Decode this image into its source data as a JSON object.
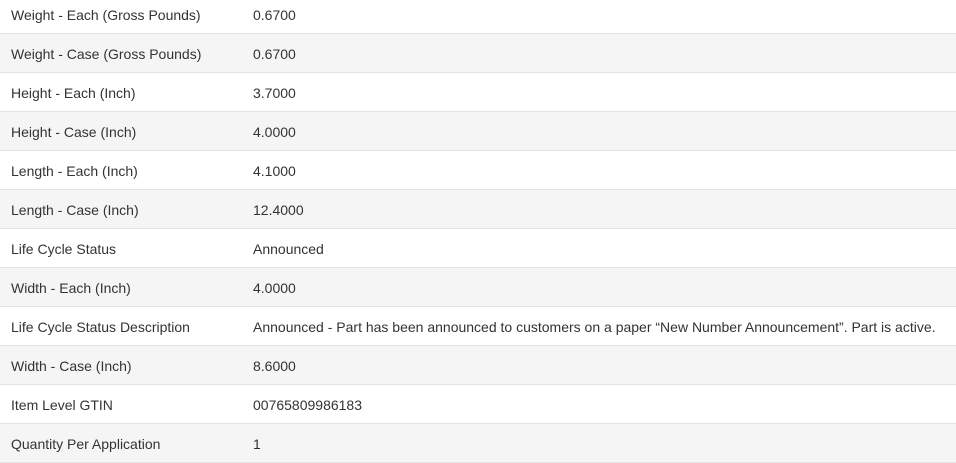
{
  "specs": [
    {
      "label": "Weight - Each (Gross Pounds)",
      "value": "0.6700"
    },
    {
      "label": "Weight - Case (Gross Pounds)",
      "value": "0.6700"
    },
    {
      "label": "Height - Each (Inch)",
      "value": "3.7000"
    },
    {
      "label": "Height - Case (Inch)",
      "value": "4.0000"
    },
    {
      "label": "Length - Each (Inch)",
      "value": "4.1000"
    },
    {
      "label": "Length - Case (Inch)",
      "value": "12.4000"
    },
    {
      "label": "Life Cycle Status",
      "value": "Announced"
    },
    {
      "label": "Width - Each (Inch)",
      "value": "4.0000"
    },
    {
      "label": "Life Cycle Status Description",
      "value": "Announced - Part has been announced to customers on a paper “New Number Announcement”. Part is active."
    },
    {
      "label": "Width - Case (Inch)",
      "value": "8.6000"
    },
    {
      "label": "Item Level GTIN",
      "value": "00765809986183"
    },
    {
      "label": "Quantity Per Application",
      "value": "1"
    }
  ]
}
